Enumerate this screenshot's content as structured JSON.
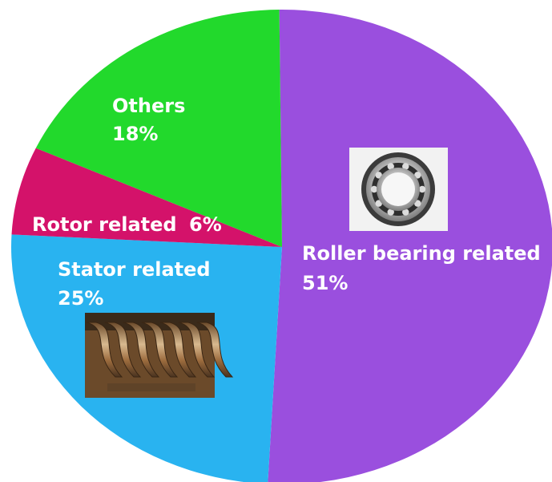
{
  "chart_data": {
    "type": "pie",
    "title": "",
    "slices": [
      {
        "label": "Roller bearing related",
        "value": 51,
        "display": "51%",
        "color": "#9a4fde"
      },
      {
        "label": "Stator related",
        "value": 25,
        "display": "25%",
        "color": "#29b3f0"
      },
      {
        "label": "Rotor related",
        "value": 6,
        "display": "6%",
        "color": "#d4126a"
      },
      {
        "label": "Others",
        "value": 18,
        "display": "18%",
        "color": "#22d92c"
      }
    ]
  },
  "images": {
    "bearing": "ball-bearing-photo",
    "stator": "stator-winding-photo"
  }
}
